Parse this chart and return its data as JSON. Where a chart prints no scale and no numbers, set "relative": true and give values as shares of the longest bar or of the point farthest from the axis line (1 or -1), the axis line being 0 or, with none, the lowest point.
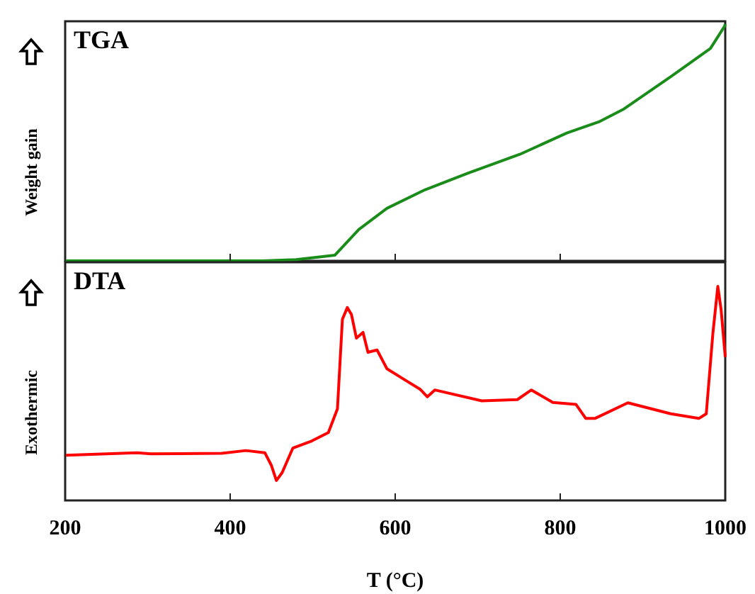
{
  "chart_data": [
    {
      "type": "line",
      "title": "TGA",
      "ylabel": "Weight gain",
      "relative": true,
      "xlim": [
        200,
        1000
      ],
      "xticks": [
        200,
        400,
        600,
        800,
        1000
      ],
      "tick_labels": false,
      "grid": false,
      "marker": "none",
      "line_style": "solid",
      "series": [
        {
          "color": "#1a8c1a",
          "x": [
            200,
            300,
            400,
            439,
            480,
            527,
            556,
            590,
            636,
            688,
            751,
            808,
            848,
            876,
            934,
            982,
            999,
            1000
          ],
          "values": [
            0,
            0,
            0,
            0,
            0.005,
            0.024,
            0.133,
            0.222,
            0.3,
            0.37,
            0.45,
            0.54,
            0.589,
            0.639,
            0.778,
            0.897,
            0.99,
            1
          ]
        }
      ]
    },
    {
      "type": "line",
      "title": "DTA",
      "ylabel": "Exothermic",
      "xlabel": "T (°C)",
      "relative": true,
      "xlim": [
        200,
        1000
      ],
      "xticks": [
        200,
        400,
        600,
        800,
        1000
      ],
      "tick_labels": "x",
      "grid": false,
      "marker": "none",
      "line_style": "solid",
      "series": [
        {
          "color": "#ff0000",
          "x": [
            201,
            287,
            304,
            390,
            419,
            442,
            450,
            456,
            463,
            476,
            499,
            519,
            530,
            536,
            542,
            547,
            553,
            561,
            567,
            578,
            590,
            613,
            630,
            639,
            648,
            705,
            748,
            765,
            791,
            819,
            831,
            842,
            882,
            934,
            968,
            977,
            985,
            991,
            995,
            1000
          ],
          "values": [
            0.211,
            0.223,
            0.218,
            0.22,
            0.233,
            0.223,
            0.163,
            0.093,
            0.13,
            0.245,
            0.278,
            0.317,
            0.428,
            0.846,
            0.901,
            0.868,
            0.758,
            0.785,
            0.692,
            0.703,
            0.615,
            0.56,
            0.52,
            0.484,
            0.516,
            0.465,
            0.471,
            0.516,
            0.458,
            0.449,
            0.383,
            0.383,
            0.456,
            0.405,
            0.383,
            0.405,
            0.78,
            1,
            0.89,
            0.67
          ]
        }
      ]
    }
  ]
}
